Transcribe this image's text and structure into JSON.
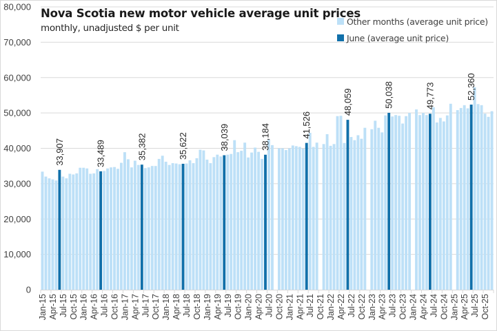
{
  "chart_data": {
    "type": "bar",
    "title": "Nova Scotia new motor vehicle average unit prices",
    "subtitle": "monthly, unadjusted $ per unit",
    "xlabel": "",
    "ylabel": "",
    "ylim": [
      0,
      80000
    ],
    "yticks": [
      0,
      10000,
      20000,
      30000,
      40000,
      50000,
      60000,
      70000,
      80000
    ],
    "ytick_labels": [
      "0",
      "10,000",
      "20,000",
      "30,000",
      "40,000",
      "50,000",
      "60,000",
      "70,000",
      "80,000"
    ],
    "grid": true,
    "legend_position": "top-right",
    "x_start": "Jan-15",
    "x_axis_end": "Dec-25",
    "xtick_labels": [
      "Jan-15",
      "Apr-15",
      "Jul-15",
      "Oct-15",
      "Jan-16",
      "Apr-16",
      "Jul-16",
      "Oct-16",
      "Jan-17",
      "Apr-17",
      "Jul-17",
      "Oct-17",
      "Jan-18",
      "Apr-18",
      "Jul-18",
      "Oct-18",
      "Jan-19",
      "Apr-19",
      "Jul-19",
      "Oct-19",
      "Jan-20",
      "Apr-20",
      "Jul-20",
      "Oct-20",
      "Jan-21",
      "Apr-21",
      "Jul-21",
      "Oct-21",
      "Jan-22",
      "Apr-22",
      "Jul-22",
      "Oct-22",
      "Jan-23",
      "Apr-23",
      "Jul-23",
      "Oct-23",
      "Jan-24",
      "Apr-24",
      "Jul-24",
      "Oct-24",
      "Jan-25",
      "Apr-25",
      "Jul-25",
      "Oct-25"
    ],
    "total_categories": 132,
    "series": [
      {
        "name": "Other months (average unit price)",
        "color": "#BDE0F7",
        "note": "all months except June; values estimated from bar heights",
        "values": [
          33400,
          32000,
          31500,
          31200,
          30900,
          null,
          32000,
          31500,
          32800,
          32600,
          32900,
          34500,
          34500,
          34300,
          32800,
          32900,
          34100,
          null,
          33600,
          34300,
          34600,
          34700,
          34200,
          35900,
          38900,
          36900,
          34600,
          36500,
          35300,
          null,
          34400,
          34600,
          35000,
          35000,
          37000,
          37900,
          36200,
          35300,
          35800,
          35700,
          35500,
          null,
          35700,
          36600,
          35800,
          37200,
          39600,
          39400,
          36800,
          35800,
          37500,
          38200,
          37700,
          null,
          38200,
          38400,
          42300,
          38900,
          39300,
          41600,
          37400,
          38800,
          40200,
          39000,
          37000,
          40500,
          42400,
          40900,
          null,
          40000,
          40000,
          39500,
          40000,
          40800,
          40600,
          40400,
          39900,
          40500,
          44400,
          40400,
          41600,
          null,
          41200,
          44000,
          40700,
          41200,
          49100,
          49200,
          41500,
          44000,
          43200,
          42300,
          43700,
          42700,
          45800,
          null,
          45400,
          47800,
          45800,
          44500,
          49300,
          49200,
          49000,
          49400,
          49200,
          47000,
          49100,
          50000,
          null,
          51000,
          49400,
          50000,
          49400,
          48100,
          51600,
          47300,
          48600,
          47600,
          49300,
          52600,
          null,
          50800,
          51400,
          52200,
          51300,
          51600,
          57300,
          52500,
          52200,
          49800,
          48900,
          50500
        ]
      },
      {
        "name": "June (average unit price)",
        "color": "#1170AA",
        "categories": [
          "Jun-15",
          "Jun-16",
          "Jun-17",
          "Jun-18",
          "Jun-19",
          "Jun-20",
          "Jun-21",
          "Jun-22",
          "Jun-23",
          "Jun-24",
          "Jun-25"
        ],
        "values": [
          33907,
          33489,
          35382,
          35622,
          38039,
          38184,
          41526,
          48059,
          50038,
          49773,
          52360
        ],
        "data_labels": [
          "33,907",
          "33,489",
          "35,382",
          "35,622",
          "38,039",
          "38,184",
          "41,526",
          "48,059",
          "50,038",
          "49,773",
          "52,360"
        ]
      }
    ]
  }
}
